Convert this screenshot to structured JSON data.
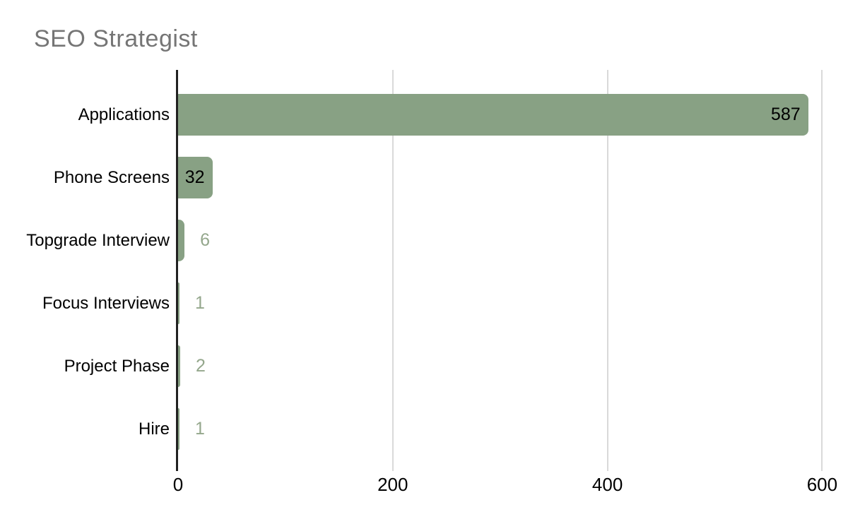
{
  "chart": {
    "title": "SEO Strategist"
  },
  "chart_data": {
    "type": "bar",
    "orientation": "horizontal",
    "title": "SEO Strategist",
    "categories": [
      "Applications",
      "Phone Screens",
      "Topgrade Interview",
      "Focus Interviews",
      "Project Phase",
      "Hire"
    ],
    "values": [
      587,
      32,
      6,
      1,
      2,
      1
    ],
    "value_labels": [
      "587",
      "32",
      "6",
      "1",
      "2",
      "1"
    ],
    "xlabel": "",
    "ylabel": "",
    "xlim": [
      0,
      614
    ],
    "x_ticks": [
      0,
      200,
      400,
      600
    ],
    "x_tick_labels": [
      "0",
      "200",
      "400",
      "600"
    ],
    "grid": "vertical-only",
    "legend": "none",
    "colors": {
      "bar": "#88a184",
      "value_label_inside": "#000000",
      "value_label_outside": "#94a78c",
      "title": "#757575",
      "axis_line": "#212121",
      "gridline": "#d9d9d9",
      "category_label": "#000000",
      "tick_label": "#000000",
      "background": "#ffffff"
    }
  }
}
